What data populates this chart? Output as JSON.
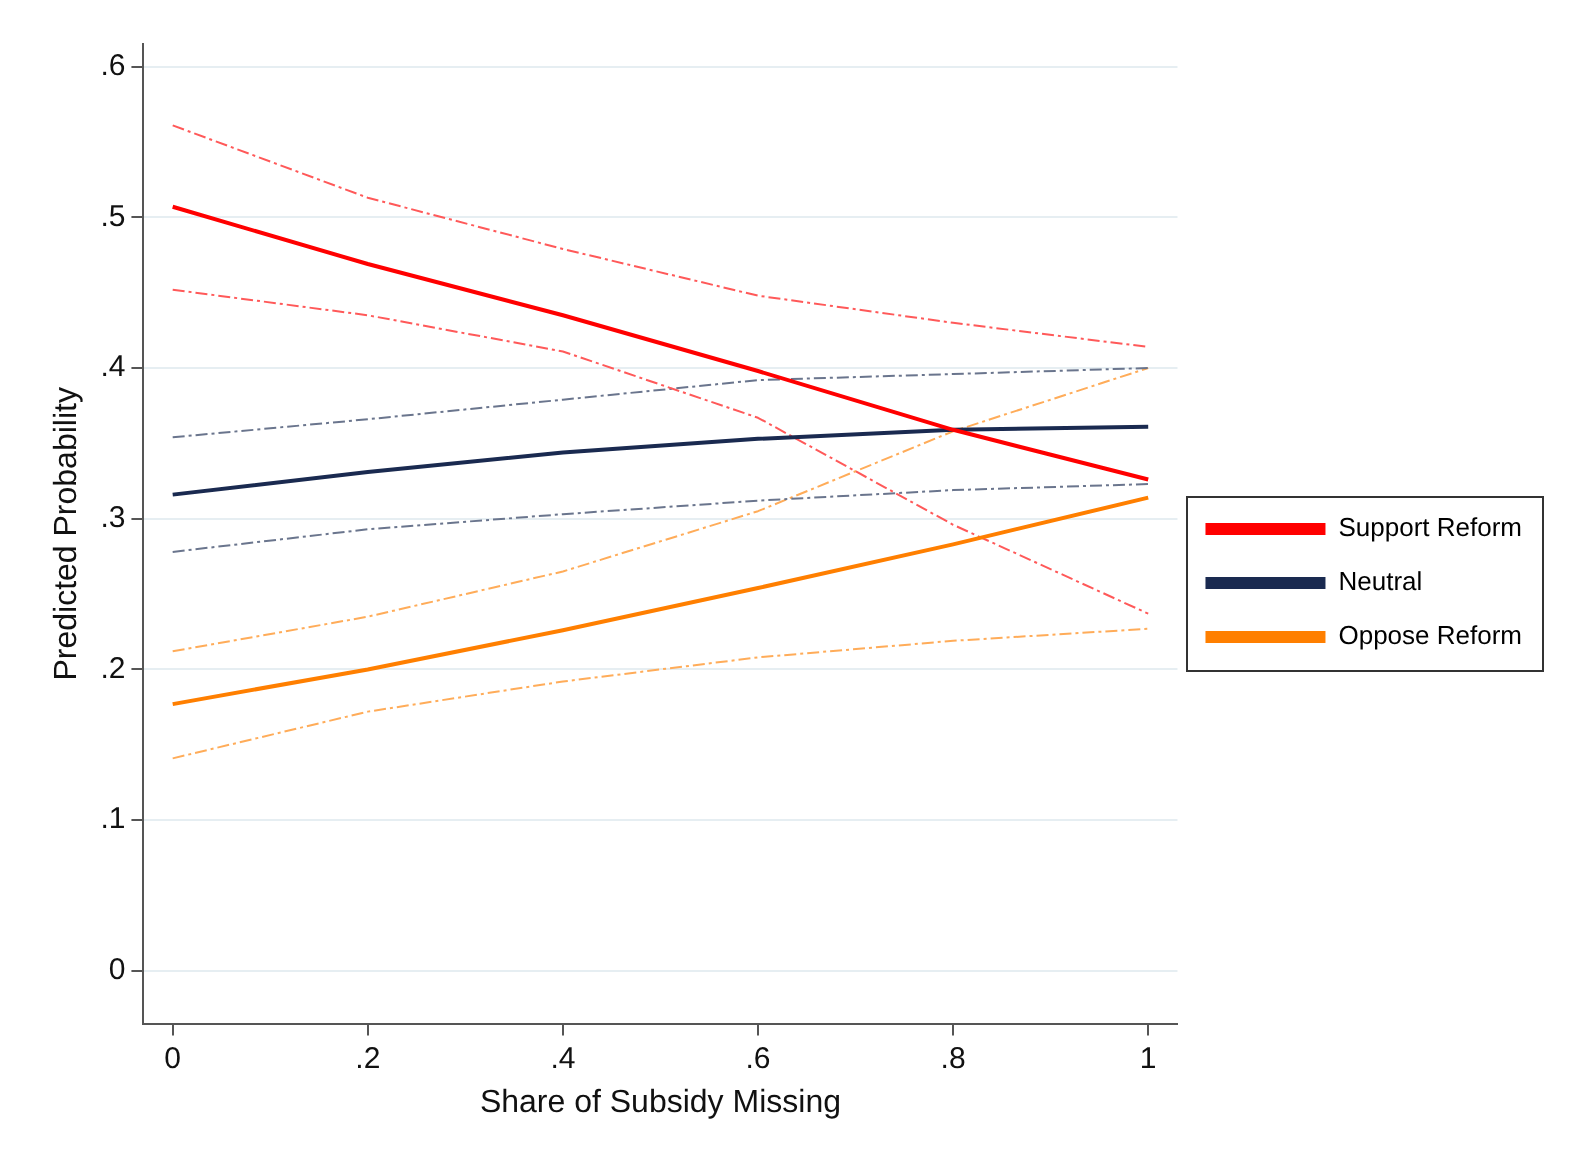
{
  "chart_data": {
    "type": "line",
    "xlabel": "Share of Subsidy Missing",
    "ylabel": "Predicted Probability",
    "x": [
      0,
      0.2,
      0.4,
      0.6,
      0.8,
      1
    ],
    "series": [
      {
        "name": "Support Reform",
        "color": "#ff0000",
        "values": [
          0.507,
          0.469,
          0.435,
          0.398,
          0.359,
          0.326
        ]
      },
      {
        "name": "Neutral",
        "color": "#1a2a50",
        "values": [
          0.316,
          0.331,
          0.344,
          0.353,
          0.359,
          0.361
        ]
      },
      {
        "name": "Oppose Reform",
        "color": "#ff7f00",
        "values": [
          0.177,
          0.2,
          0.226,
          0.254,
          0.283,
          0.314
        ]
      },
      {
        "color": "#ff5959",
        "line_style": "dashed",
        "values": [
          0.452,
          0.435,
          0.411,
          0.367,
          0.296,
          0.237
        ]
      },
      {
        "color": "#ff5959",
        "line_style": "dashed",
        "values": [
          0.561,
          0.513,
          0.479,
          0.448,
          0.43,
          0.414
        ]
      },
      {
        "color": "#6a758d",
        "line_style": "dashed",
        "values": [
          0.278,
          0.293,
          0.303,
          0.312,
          0.319,
          0.323
        ]
      },
      {
        "color": "#6a758d",
        "line_style": "dashed",
        "values": [
          0.354,
          0.366,
          0.379,
          0.392,
          0.396,
          0.4
        ]
      },
      {
        "color": "#ffac59",
        "line_style": "dashed",
        "values": [
          0.141,
          0.172,
          0.192,
          0.208,
          0.219,
          0.227
        ]
      },
      {
        "color": "#ffac59",
        "line_style": "dashed",
        "values": [
          0.212,
          0.235,
          0.265,
          0.305,
          0.358,
          0.4
        ]
      }
    ],
    "xlim": [
      -0.03,
      1.03
    ],
    "xticks": [
      {
        "value": 0,
        "label": "0"
      },
      {
        "value": 0.2,
        "label": ".2"
      },
      {
        "value": 0.4,
        "label": ".4"
      },
      {
        "value": 0.6,
        "label": ".6"
      },
      {
        "value": 0.8,
        "label": ".8"
      },
      {
        "value": 1,
        "label": "1"
      }
    ],
    "ylim": [
      -0.035,
      0.615
    ],
    "yticks": [
      {
        "value": 0,
        "label": "0"
      },
      {
        "value": 0.1,
        "label": ".1"
      },
      {
        "value": 0.2,
        "label": ".2"
      },
      {
        "value": 0.3,
        "label": ".3"
      },
      {
        "value": 0.4,
        "label": ".4"
      },
      {
        "value": 0.5,
        "label": ".5"
      },
      {
        "value": 0.6,
        "label": ".6"
      }
    ],
    "grid": "y",
    "legend": "right",
    "marker": "none",
    "line_style": "solid"
  }
}
